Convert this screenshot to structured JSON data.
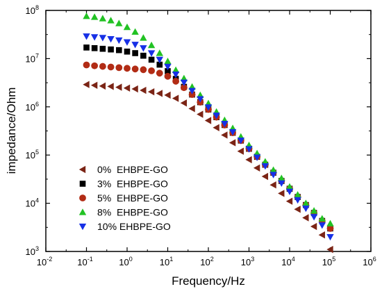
{
  "chart_data": {
    "type": "scatter",
    "xlabel": "Frequency/Hz",
    "ylabel": "impedance/Ohm",
    "x_scale": "log",
    "y_scale": "log",
    "xlim": [
      0.01,
      1000000
    ],
    "ylim": [
      1000,
      100000000
    ],
    "x_ticks": [
      {
        "base": "10",
        "exp": "-2"
      },
      {
        "base": "10",
        "exp": "-1"
      },
      {
        "base": "10",
        "exp": "0"
      },
      {
        "base": "10",
        "exp": "1"
      },
      {
        "base": "10",
        "exp": "2"
      },
      {
        "base": "10",
        "exp": "3"
      },
      {
        "base": "10",
        "exp": "4"
      },
      {
        "base": "10",
        "exp": "5"
      },
      {
        "base": "10",
        "exp": "6"
      }
    ],
    "y_ticks": [
      {
        "base": "10",
        "exp": "3"
      },
      {
        "base": "10",
        "exp": "4"
      },
      {
        "base": "10",
        "exp": "5"
      },
      {
        "base": "10",
        "exp": "6"
      },
      {
        "base": "10",
        "exp": "7"
      },
      {
        "base": "10",
        "exp": "8"
      }
    ],
    "grid": false,
    "legend_position": "lower-left",
    "x": [
      0.1,
      0.158,
      0.251,
      0.398,
      0.631,
      1,
      1.58,
      2.51,
      3.98,
      6.31,
      10,
      15.8,
      25.1,
      39.8,
      63.1,
      100,
      158,
      251,
      398,
      631,
      1000,
      1580,
      2510,
      3980,
      6310,
      10000,
      15800,
      25100,
      39800,
      63100,
      100000
    ],
    "series": [
      {
        "name": "0%  EHBPE-GO",
        "marker": "triangle-left",
        "color": "#7b2415",
        "values": [
          2900000,
          2800000,
          2700000,
          2650000,
          2550000,
          2450000,
          2350000,
          2200000,
          2050000,
          1900000,
          1750000,
          1500000,
          1200000,
          920000,
          700000,
          520000,
          370000,
          260000,
          180000,
          120000,
          80000,
          54000,
          36000,
          24000,
          16000,
          11000,
          7500,
          5000,
          3300,
          2200,
          1100
        ]
      },
      {
        "name": "3%  EHBPE-GO",
        "marker": "square",
        "color": "#000000",
        "values": [
          17000000,
          16500000,
          16000000,
          15500000,
          15000000,
          14000000,
          13000000,
          11500000,
          9500000,
          7500000,
          5500000,
          3800000,
          2600000,
          1800000,
          1250000,
          880000,
          610000,
          420000,
          290000,
          200000,
          135000,
          92000,
          63000,
          43000,
          29000,
          20000,
          13500,
          9200,
          6300,
          4300,
          3000
        ]
      },
      {
        "name": "5%  EHBPE-GO",
        "marker": "circle",
        "color": "#b22c15",
        "values": [
          7400000,
          7100000,
          6900000,
          6700000,
          6500000,
          6300000,
          6100000,
          5900000,
          5600000,
          5000000,
          4300000,
          3400000,
          2500000,
          1800000,
          1250000,
          880000,
          610000,
          420000,
          290000,
          200000,
          135000,
          92000,
          63000,
          43000,
          29000,
          20000,
          13500,
          9200,
          6300,
          4300,
          3000
        ]
      },
      {
        "name": "8%  EHBPE-GO",
        "marker": "triangle-up",
        "color": "#22c224",
        "values": [
          76000000,
          73000000,
          68000000,
          62000000,
          54000000,
          45000000,
          36000000,
          27000000,
          19000000,
          13000000,
          8800000,
          5800000,
          3900000,
          2600000,
          1750000,
          1180000,
          790000,
          530000,
          360000,
          240000,
          160000,
          108000,
          73000,
          49000,
          33000,
          22000,
          15000,
          10000,
          7000,
          4800,
          3800
        ]
      },
      {
        "name": "10% EHBPE-GO",
        "marker": "triangle-down",
        "color": "#1730e6",
        "values": [
          29000000,
          28000000,
          27000000,
          25500000,
          24000000,
          22000000,
          19500000,
          16500000,
          13000000,
          9500000,
          6800000,
          4700000,
          3200000,
          2150000,
          1450000,
          980000,
          660000,
          445000,
          300000,
          200000,
          133000,
          89000,
          59000,
          39000,
          26000,
          17500,
          11700,
          7800,
          5200,
          3500,
          2000
        ]
      }
    ]
  }
}
